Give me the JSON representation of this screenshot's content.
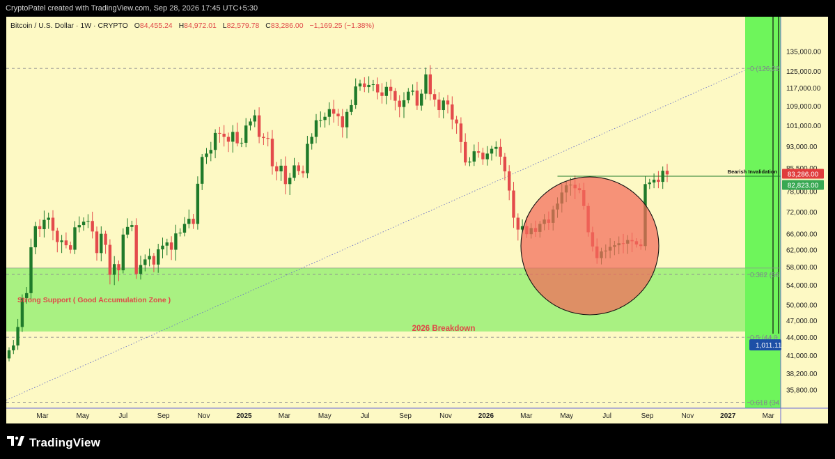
{
  "header": {
    "attribution": "CryptoPatel created with TradingView.com, Sep 28, 2026 17:45 UTC+5:30"
  },
  "legend": {
    "symbol": "Bitcoin / U.S. Dollar · 1W · CRYPTO",
    "open_label": "O",
    "open": "84,455.24",
    "high_label": "H",
    "high": "84,972.01",
    "low_label": "L",
    "low": "82,579.78",
    "close_label": "C",
    "close": "83,286.00",
    "change": "−1,169.25 (−1.38%)"
  },
  "footer": {
    "brand": "TradingView",
    "logo_icon": "tradingview-logo-icon"
  },
  "colors": {
    "background": "#fdf9c4",
    "up_candle": "#1f7a2a",
    "down_candle": "#e34b4b",
    "support_zone": "#a4f07e",
    "time_zone": "#6ef55b",
    "circle": "#f26a5a",
    "price_tag": "#e03c3c",
    "support_tag": "#38a853",
    "fib_tag": "#1d4fa6"
  },
  "chart_data": {
    "type": "candlestick",
    "title": "Bitcoin / U.S. Dollar · 1W · CRYPTO",
    "y_axis": {
      "scale": "log",
      "ylim": [
        33500,
        150000
      ],
      "ticks": [
        "135,000.00",
        "125,000.00",
        "117,000.00",
        "109,000.00",
        "101,000.00",
        "93,000.00",
        "85,500.00",
        "78,000.00",
        "72,000.00",
        "66,000.00",
        "62,000.00",
        "58,000.00",
        "54,000.00",
        "50,000.00",
        "47,000.00",
        "44,000.00",
        "41,000.00",
        "38,200.00",
        "35,800.00"
      ]
    },
    "x_axis": {
      "ticks": [
        "Mar",
        "May",
        "Jul",
        "Sep",
        "Nov",
        "2025",
        "Mar",
        "May",
        "Jul",
        "Sep",
        "Nov",
        "2026",
        "Mar",
        "May",
        "Jul",
        "Sep",
        "Nov",
        "2027",
        "Mar"
      ]
    },
    "annotations": {
      "support_label": "Strong Support ( Good Accumulation Zone )",
      "support_zone": [
        45000,
        57700
      ],
      "breakdown_label": "2026 Breakdown",
      "invalidation_label": "Bearish Invalidation",
      "invalidation_level": 82700,
      "fib_0_label": "0 (126,22",
      "fib_0": 126220,
      "fib_0382_label": "0.382 (56",
      "fib_0382": 56300,
      "fib_05_label": "0.5 (44,0",
      "fib_05": 44000,
      "fib_0618_label": "0.618 (34",
      "fib_0618": 34100,
      "price_tag": "83,286.00",
      "support_tag": "82,823.00",
      "fib_tag": "1,011.11"
    },
    "closes": [
      41800,
      42600,
      45800,
      51300,
      52300,
      62600,
      68000,
      67200,
      69700,
      70300,
      66800,
      63900,
      64300,
      63100,
      62000,
      67700,
      68300,
      69200,
      69400,
      66600,
      61200,
      66000,
      63200,
      56200,
      58600,
      57200,
      65800,
      67800,
      68300,
      56400,
      58400,
      59700,
      60500,
      58500,
      62100,
      63000,
      63800,
      62000,
      66100,
      66300,
      68600,
      70000,
      68600,
      80300,
      89200,
      90400,
      91700,
      98000,
      97700,
      96500,
      94700,
      98400,
      94100,
      94300,
      100900,
      102500,
      105000,
      96500,
      96100,
      95800,
      86000,
      84300,
      86200,
      80200,
      82200,
      86300,
      84400,
      83700,
      93900,
      96500,
      103000,
      103100,
      104400,
      107600,
      105700,
      104600,
      100200,
      106400,
      109300,
      117600,
      119000,
      117300,
      118300,
      118600,
      114900,
      113300,
      117400,
      115500,
      111200,
      108500,
      111400,
      115200,
      115700,
      109100,
      114300,
      123300,
      114100,
      111700,
      107200,
      111300,
      109600,
      103300,
      101700,
      94600,
      87300,
      87600,
      91200,
      90700,
      88400,
      90400,
      92100,
      92800,
      89300,
      84300,
      78200,
      70300,
      67100,
      68000,
      65900,
      67500,
      66500,
      68600,
      69800,
      68900,
      72600,
      74300,
      77600,
      79800,
      80000,
      78900,
      78300,
      73600,
      66400,
      62800,
      60000,
      61600,
      61800,
      62700,
      63100,
      63600,
      63500,
      64400,
      64100,
      63300,
      62900,
      80200,
      80700,
      81600,
      80900,
      84500,
      83300
    ]
  }
}
